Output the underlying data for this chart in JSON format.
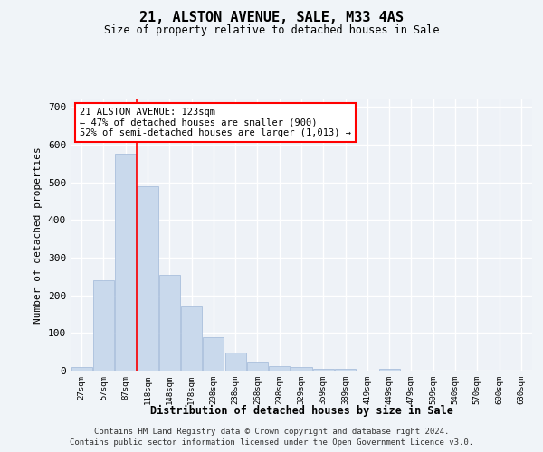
{
  "title": "21, ALSTON AVENUE, SALE, M33 4AS",
  "subtitle": "Size of property relative to detached houses in Sale",
  "xlabel": "Distribution of detached houses by size in Sale",
  "ylabel": "Number of detached properties",
  "categories": [
    "27sqm",
    "57sqm",
    "87sqm",
    "118sqm",
    "148sqm",
    "178sqm",
    "208sqm",
    "238sqm",
    "268sqm",
    "298sqm",
    "329sqm",
    "359sqm",
    "389sqm",
    "419sqm",
    "449sqm",
    "479sqm",
    "509sqm",
    "540sqm",
    "570sqm",
    "600sqm",
    "630sqm"
  ],
  "values": [
    10,
    240,
    575,
    490,
    255,
    170,
    90,
    47,
    25,
    12,
    9,
    5,
    4,
    0,
    5,
    0,
    0,
    0,
    0,
    0,
    0
  ],
  "bar_color": "#c9d9ec",
  "bar_edge_color": "#a0b8d8",
  "red_line_index": 2.5,
  "annotation_line1": "21 ALSTON AVENUE: 123sqm",
  "annotation_line2": "← 47% of detached houses are smaller (900)",
  "annotation_line3": "52% of semi-detached houses are larger (1,013) →",
  "ylim": [
    0,
    720
  ],
  "yticks": [
    0,
    100,
    200,
    300,
    400,
    500,
    600,
    700
  ],
  "background_color": "#eef2f7",
  "grid_color": "#ffffff",
  "footnote1": "Contains HM Land Registry data © Crown copyright and database right 2024.",
  "footnote2": "Contains public sector information licensed under the Open Government Licence v3.0."
}
